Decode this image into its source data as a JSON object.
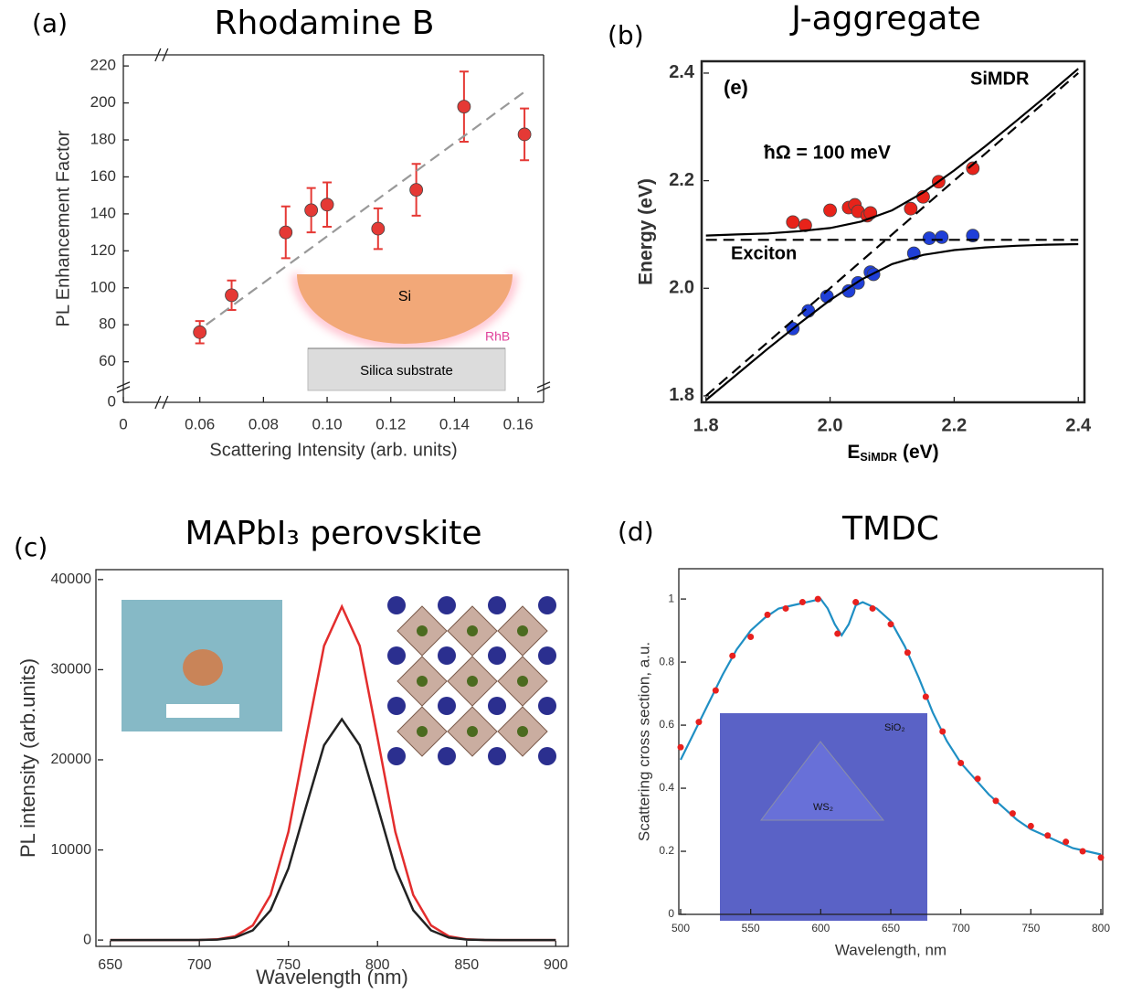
{
  "chart_data": [
    {
      "type": "scatter",
      "panel": "(a)",
      "title": "Rhodamine B",
      "xlabel": "Scattering Intensity (arb. units)",
      "ylabel": "PL Enhancement Factor",
      "xlim": [
        0,
        0.168
      ],
      "xbreak": [
        0.01,
        0.05
      ],
      "xticks": [
        0,
        0.06,
        0.08,
        {
          "value": 0.1,
          "label": "0.10"
        },
        0.12,
        0.14,
        0.16
      ],
      "ylim": [
        0,
        226
      ],
      "ybreak": [
        5,
        50
      ],
      "yticks": [
        0,
        60,
        80,
        100,
        120,
        140,
        160,
        180,
        200,
        220
      ],
      "series": [
        {
          "kind": "markers",
          "color": "#e53935",
          "x": [
            0.06,
            0.07,
            0.087,
            0.095,
            0.1,
            0.116,
            0.128,
            0.143,
            0.162
          ],
          "values": [
            76,
            96,
            130,
            142,
            145,
            132,
            153,
            198,
            183
          ],
          "errors": [
            6,
            8,
            14,
            12,
            12,
            11,
            14,
            19,
            14
          ]
        },
        {
          "kind": "line",
          "dash": true,
          "color": "#999999",
          "x": [
            0.062,
            0.162
          ],
          "values": [
            80,
            206
          ]
        }
      ],
      "annotations": [
        "Si",
        "Silica substrate",
        "RhB"
      ]
    },
    {
      "type": "scatter",
      "panel": "(b)",
      "title": "J-aggregate",
      "xlabel": {
        "text": "E",
        "sub": "SiMDR",
        "unit": "(eV)"
      },
      "ylabel": "Energy (eV)",
      "xlim": [
        1.796,
        2.407
      ],
      "xticks": [
        1.8,
        {
          "value": 2,
          "label": "2.0"
        },
        2.2,
        2.4
      ],
      "ylim": [
        1.788,
        2.422
      ],
      "yticks": [
        1.8,
        {
          "value": 2,
          "label": "2.0"
        },
        2.2,
        2.4
      ],
      "series": [
        {
          "kind": "markers",
          "color": "#e8231a",
          "x": [
            1.94,
            1.96,
            2.0,
            2.03,
            2.04,
            2.045,
            2.06,
            2.065,
            2.13,
            2.15,
            2.175,
            2.23
          ],
          "values": [
            2.123,
            2.117,
            2.145,
            2.15,
            2.155,
            2.143,
            2.135,
            2.14,
            2.148,
            2.17,
            2.198,
            2.223
          ]
        },
        {
          "kind": "markers",
          "color": "#1f3fd8",
          "x": [
            1.94,
            1.965,
            1.995,
            2.03,
            2.045,
            2.065,
            2.07,
            2.135,
            2.16,
            2.18,
            2.23
          ],
          "values": [
            1.925,
            1.958,
            1.985,
            1.995,
            2.01,
            2.03,
            2.026,
            2.065,
            2.093,
            2.095,
            2.098
          ]
        },
        {
          "kind": "line",
          "color": "#000000",
          "x": [
            1.8,
            1.85,
            1.9,
            1.95,
            2.0,
            2.05,
            2.1,
            2.15,
            2.2,
            2.25,
            2.3,
            2.35,
            2.4
          ],
          "values": [
            2.098,
            2.1,
            2.102,
            2.106,
            2.112,
            2.124,
            2.145,
            2.178,
            2.219,
            2.264,
            2.311,
            2.359,
            2.408
          ]
        },
        {
          "kind": "line",
          "color": "#000000",
          "x": [
            1.8,
            1.85,
            1.9,
            1.95,
            2.0,
            2.05,
            2.1,
            2.15,
            2.2,
            2.25,
            2.3,
            2.35,
            2.4
          ],
          "values": [
            1.792,
            1.84,
            1.888,
            1.934,
            1.978,
            2.016,
            2.045,
            2.062,
            2.071,
            2.076,
            2.079,
            2.081,
            2.082
          ]
        },
        {
          "name": "SiMDR",
          "kind": "line",
          "dash": true,
          "color": "#000000",
          "x": [
            1.8,
            2.4
          ],
          "values": [
            1.8,
            2.4
          ]
        },
        {
          "name": "Exciton",
          "kind": "line",
          "dash": true,
          "color": "#000000",
          "x": [
            1.8,
            2.4
          ],
          "values": [
            2.09,
            2.09
          ]
        }
      ],
      "annotations": [
        "(e)",
        "ħΩ = 100 meV"
      ]
    },
    {
      "type": "line",
      "panel": "(c)",
      "title": "MAPbI₃ perovskite",
      "xlabel": "Wavelength (nm)",
      "ylabel": "PL intensity (arb.units)",
      "xlim": [
        643,
        906
      ],
      "xticks": [
        650,
        700,
        750,
        800,
        850,
        900
      ],
      "ylim": [
        -700,
        41100
      ],
      "yticks": [
        0,
        10000,
        20000,
        30000,
        40000
      ],
      "x": [
        650,
        700,
        710,
        720,
        730,
        740,
        750,
        760,
        770,
        780,
        790,
        800,
        810,
        820,
        830,
        840,
        850,
        860,
        870,
        900
      ],
      "series": [
        {
          "kind": "line",
          "color": "#e32d2d",
          "values": [
            0,
            12,
            81,
            411,
            1625,
            5007,
            12014,
            22441,
            32653,
            37000,
            32653,
            22441,
            12014,
            5007,
            1625,
            411,
            81,
            12,
            0,
            0
          ]
        },
        {
          "kind": "line",
          "color": "#222222",
          "values": [
            0,
            8,
            54,
            272,
            1076,
            3315,
            7955,
            14859,
            21621,
            24500,
            21621,
            14859,
            7955,
            3315,
            1076,
            272,
            54,
            8,
            0,
            0
          ]
        }
      ]
    },
    {
      "type": "line",
      "panel": "(d)",
      "title": "TMDC",
      "xlabel": "Wavelength, nm",
      "ylabel": "Scattering cross section, a.u.",
      "xlim": [
        500,
        800
      ],
      "xticks": [
        500,
        550,
        600,
        650,
        700,
        750,
        800
      ],
      "ylim": [
        0,
        1.096
      ],
      "yticks": [
        0,
        0.2,
        0.4,
        0.6,
        0.8,
        1
      ],
      "series": [
        {
          "kind": "line",
          "color": "#1f8fc4",
          "x": [
            500,
            510,
            520,
            530,
            540,
            550,
            560,
            570,
            580,
            590,
            600,
            605,
            610,
            615,
            620,
            625,
            630,
            640,
            650,
            660,
            670,
            680,
            690,
            700,
            710,
            720,
            730,
            740,
            750,
            760,
            770,
            780,
            790,
            800
          ],
          "values": [
            0.49,
            0.58,
            0.67,
            0.76,
            0.84,
            0.9,
            0.94,
            0.97,
            0.98,
            0.99,
            1.0,
            0.97,
            0.92,
            0.885,
            0.92,
            0.98,
            0.99,
            0.97,
            0.93,
            0.85,
            0.75,
            0.64,
            0.55,
            0.48,
            0.43,
            0.38,
            0.34,
            0.3,
            0.27,
            0.25,
            0.23,
            0.21,
            0.2,
            0.19
          ]
        },
        {
          "kind": "markers",
          "color": "#e8201e",
          "x": [
            500,
            513,
            525,
            537,
            550,
            562,
            575,
            587,
            598,
            612,
            625,
            637,
            650,
            662,
            675,
            687,
            700,
            712,
            725,
            737,
            750,
            762,
            775,
            787,
            800
          ],
          "values": [
            0.53,
            0.61,
            0.71,
            0.82,
            0.88,
            0.95,
            0.97,
            0.99,
            1.0,
            0.89,
            0.99,
            0.97,
            0.92,
            0.83,
            0.69,
            0.58,
            0.48,
            0.43,
            0.36,
            0.32,
            0.28,
            0.25,
            0.23,
            0.2,
            0.18
          ]
        }
      ],
      "annotations": [
        "SiO₂",
        "WS₂"
      ]
    }
  ]
}
